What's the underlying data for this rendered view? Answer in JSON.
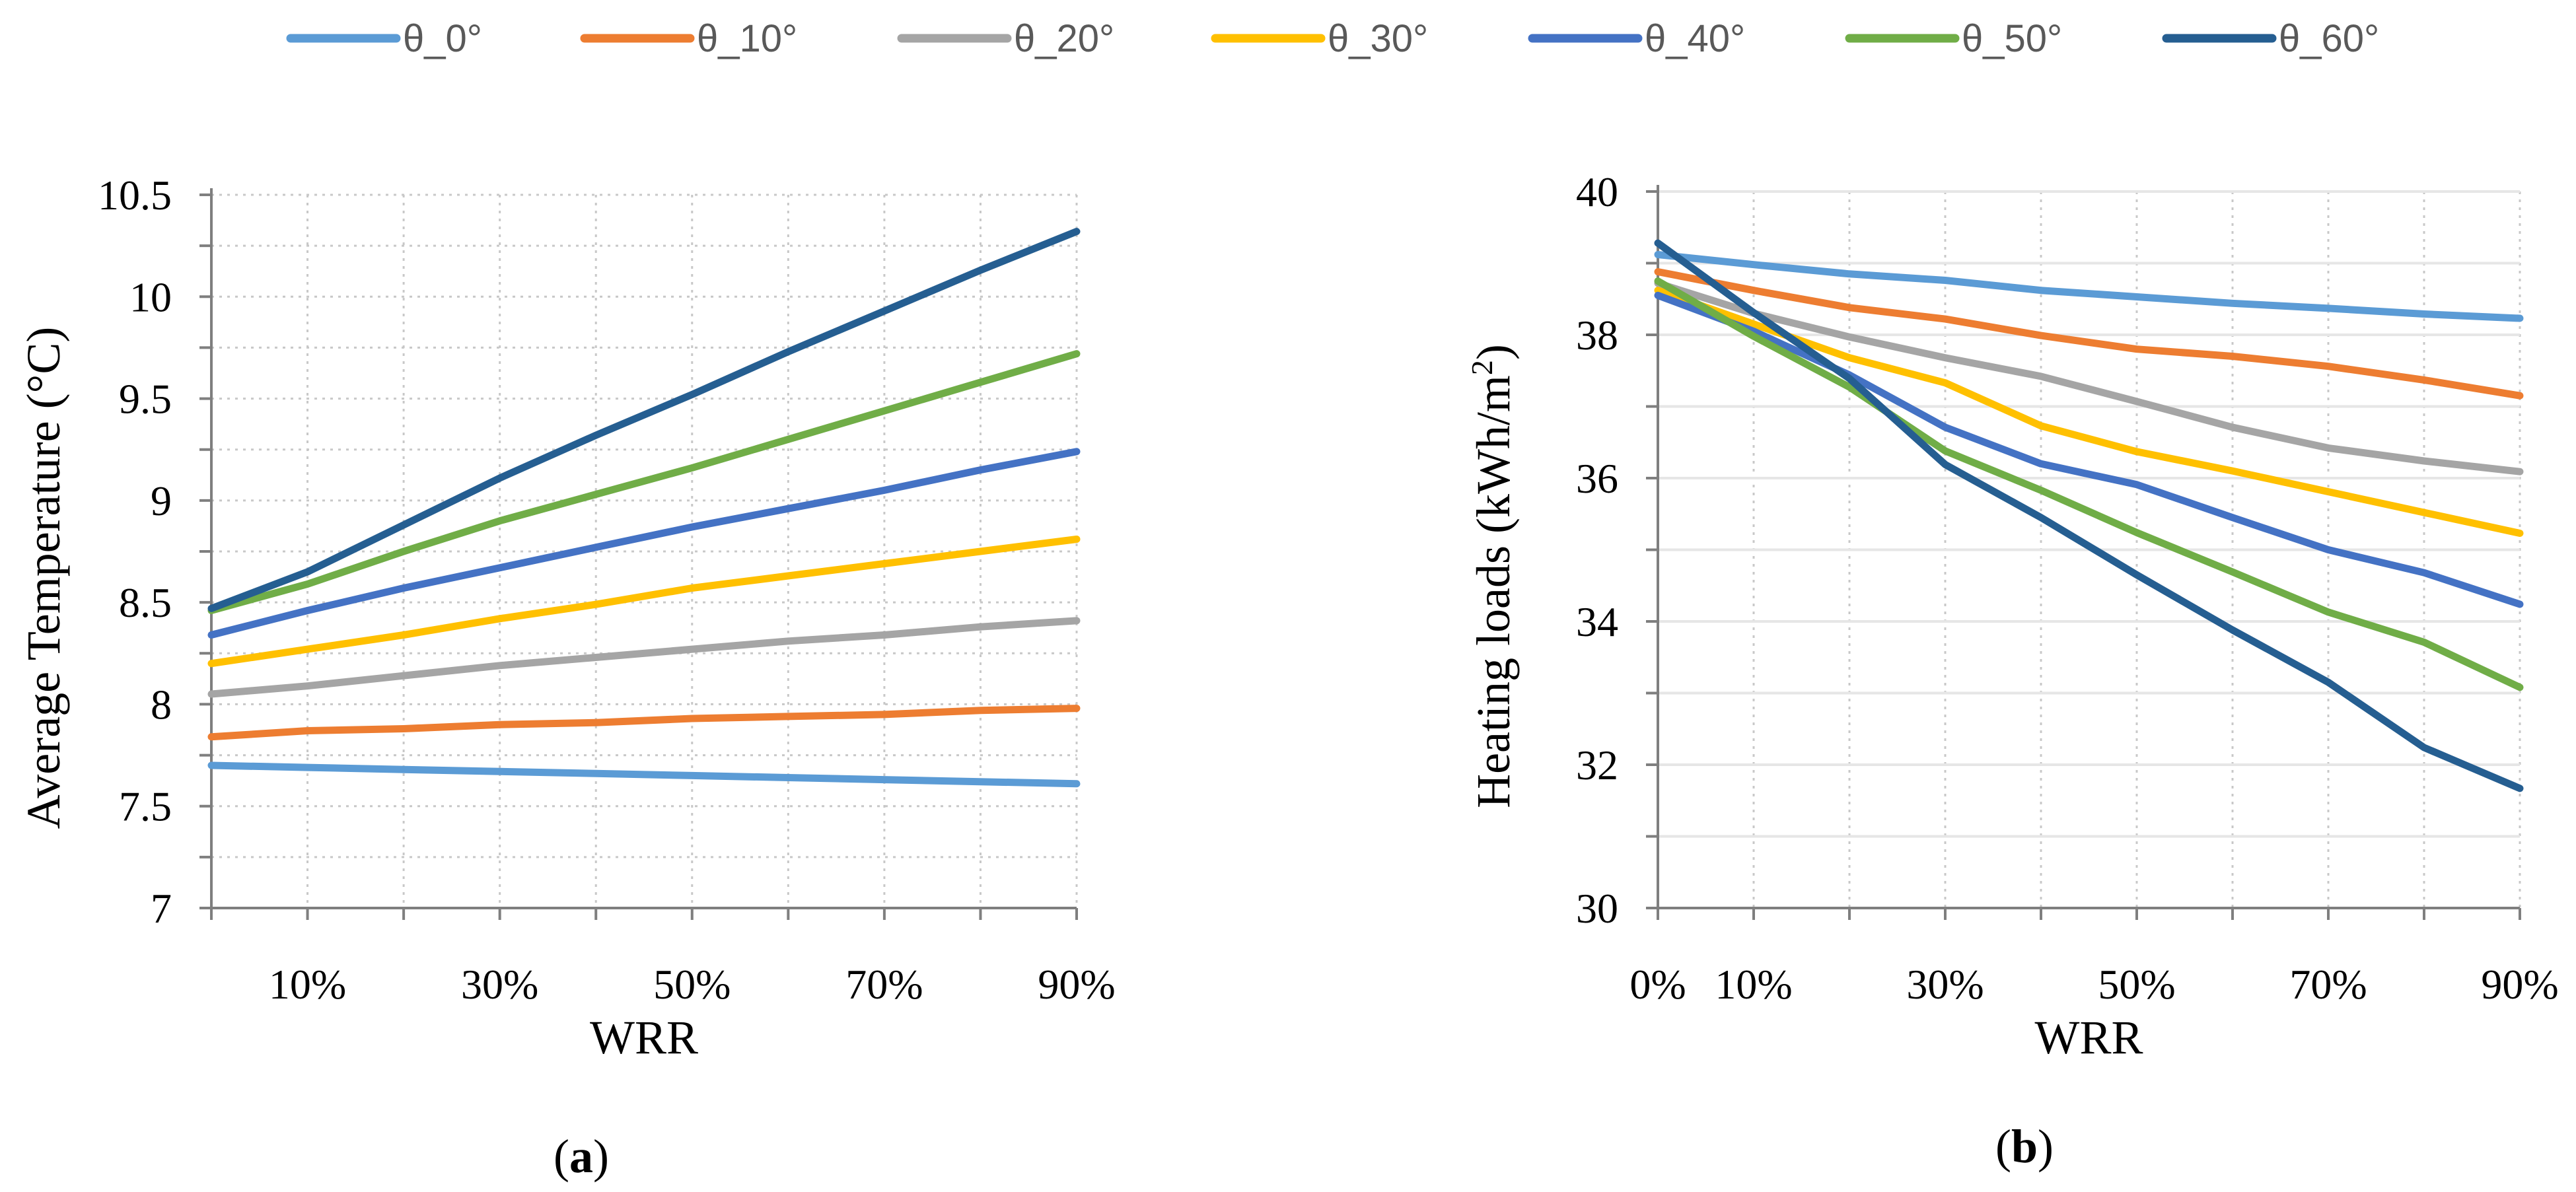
{
  "legend": {
    "position": "top",
    "entries": [
      {
        "label": "θ_0°",
        "color": "#5b9bd5"
      },
      {
        "label": "θ_10°",
        "color": "#ed7d31"
      },
      {
        "label": "θ_20°",
        "color": "#a5a5a5"
      },
      {
        "label": "θ_30°",
        "color": "#ffc000"
      },
      {
        "label": "θ_40°",
        "color": "#4472c4"
      },
      {
        "label": "θ_50°",
        "color": "#70ad47"
      },
      {
        "label": "θ_60°",
        "color": "#255e91"
      }
    ]
  },
  "chart_data": [
    {
      "type": "line",
      "caption": {
        "open": "(",
        "letter": "a",
        "close": ")"
      },
      "xlabel": "WRR",
      "ylabel": "Average Temperature (°C)",
      "x": [
        0,
        10,
        20,
        30,
        40,
        50,
        60,
        70,
        80,
        90
      ],
      "x_tick_labels": [
        {
          "x": 10,
          "label": "10%"
        },
        {
          "x": 30,
          "label": "30%"
        },
        {
          "x": 50,
          "label": "50%"
        },
        {
          "x": 70,
          "label": "70%"
        },
        {
          "x": 90,
          "label": "90%"
        }
      ],
      "xlim": [
        0,
        90
      ],
      "ylim": [
        7,
        10.5
      ],
      "y_ticks": [
        "7",
        "7.5",
        "8",
        "8.5",
        "9",
        "9.5",
        "10",
        "10.5"
      ],
      "y_tick_values": [
        7,
        7.5,
        8,
        8.5,
        9,
        9.5,
        10,
        10.5
      ],
      "y_minor_step": 0.25,
      "grid": true,
      "series": [
        {
          "name": "θ_0°",
          "values": [
            7.7,
            7.69,
            7.68,
            7.67,
            7.66,
            7.65,
            7.64,
            7.63,
            7.62,
            7.61
          ]
        },
        {
          "name": "θ_10°",
          "values": [
            7.84,
            7.87,
            7.88,
            7.9,
            7.91,
            7.93,
            7.94,
            7.95,
            7.97,
            7.98
          ]
        },
        {
          "name": "θ_20°",
          "values": [
            8.05,
            8.09,
            8.14,
            8.19,
            8.23,
            8.27,
            8.31,
            8.34,
            8.38,
            8.41
          ]
        },
        {
          "name": "θ_30°",
          "values": [
            8.2,
            8.27,
            8.34,
            8.42,
            8.49,
            8.57,
            8.63,
            8.69,
            8.75,
            8.81
          ]
        },
        {
          "name": "θ_40°",
          "values": [
            8.34,
            8.46,
            8.57,
            8.67,
            8.77,
            8.87,
            8.96,
            9.05,
            9.15,
            9.24
          ]
        },
        {
          "name": "θ_50°",
          "values": [
            8.46,
            8.59,
            8.75,
            8.9,
            9.03,
            9.16,
            9.3,
            9.44,
            9.58,
            9.72
          ]
        },
        {
          "name": "θ_60°",
          "values": [
            8.47,
            8.65,
            8.88,
            9.11,
            9.32,
            9.52,
            9.73,
            9.93,
            10.13,
            10.32
          ]
        }
      ]
    },
    {
      "type": "line",
      "caption": {
        "open": "(",
        "letter": "b",
        "close": ")"
      },
      "xlabel": "WRR",
      "ylabel": "Heating loads (kWh/m",
      "ylabel_sup": "2",
      "ylabel_end": ")",
      "x": [
        0,
        10,
        20,
        30,
        40,
        50,
        60,
        70,
        80,
        90
      ],
      "x_tick_labels": [
        {
          "x": 0,
          "label": "0%"
        },
        {
          "x": 10,
          "label": "10%"
        },
        {
          "x": 30,
          "label": "30%"
        },
        {
          "x": 50,
          "label": "50%"
        },
        {
          "x": 70,
          "label": "70%"
        },
        {
          "x": 90,
          "label": "90%"
        }
      ],
      "xlim": [
        0,
        90
      ],
      "ylim": [
        30,
        40
      ],
      "y_ticks": [
        "30",
        "32",
        "34",
        "36",
        "38",
        "40"
      ],
      "y_tick_values": [
        30,
        32,
        34,
        36,
        38,
        40
      ],
      "y_minor_step": 1,
      "grid": true,
      "series": [
        {
          "name": "θ_0°",
          "values": [
            39.12,
            38.98,
            38.85,
            38.76,
            38.62,
            38.53,
            38.44,
            38.37,
            38.29,
            38.23
          ]
        },
        {
          "name": "θ_10°",
          "values": [
            38.88,
            38.62,
            38.38,
            38.22,
            37.99,
            37.8,
            37.7,
            37.56,
            37.37,
            37.15
          ]
        },
        {
          "name": "θ_20°",
          "values": [
            38.72,
            38.3,
            37.97,
            37.68,
            37.42,
            37.07,
            36.71,
            36.42,
            36.24,
            36.09
          ]
        },
        {
          "name": "θ_30°",
          "values": [
            38.62,
            38.15,
            37.68,
            37.33,
            36.73,
            36.37,
            36.1,
            35.81,
            35.52,
            35.23
          ]
        },
        {
          "name": "θ_40°",
          "values": [
            38.55,
            38.05,
            37.44,
            36.71,
            36.2,
            35.91,
            35.45,
            35.0,
            34.68,
            34.24
          ]
        },
        {
          "name": "θ_50°",
          "values": [
            38.75,
            37.98,
            37.27,
            36.38,
            35.83,
            35.24,
            34.69,
            34.13,
            33.71,
            33.08
          ]
        },
        {
          "name": "θ_60°",
          "values": [
            39.28,
            38.31,
            37.39,
            36.19,
            35.45,
            34.65,
            33.88,
            33.15,
            32.24,
            31.67
          ]
        }
      ]
    }
  ]
}
